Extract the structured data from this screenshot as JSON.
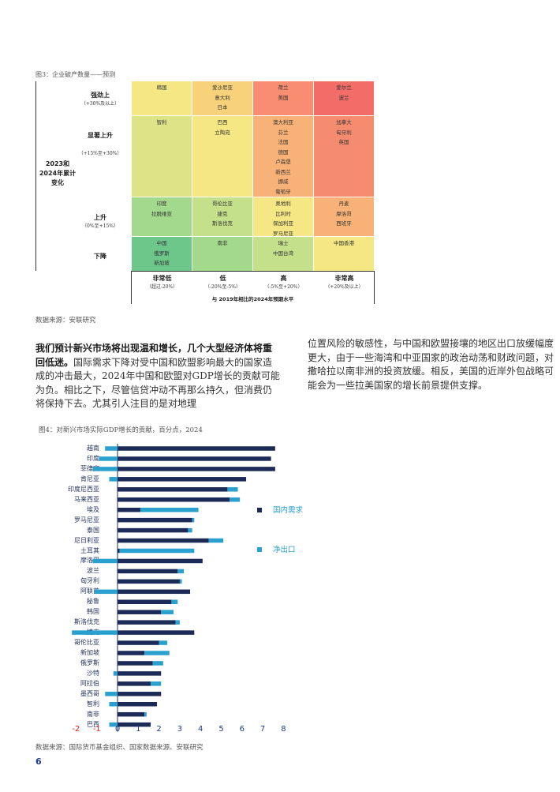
{
  "fig3": {
    "title": "图3：企业破产数量——预测",
    "left_label": [
      "2023和",
      "2024年累计",
      "变化"
    ],
    "rows": [
      {
        "label": "强劲上",
        "sub": "（+30%及以上）"
      },
      {
        "label": "显著上升",
        "sub": "（+15%至+30%）"
      },
      {
        "label": "上升",
        "sub": "（0%至+15%）"
      },
      {
        "label": "下降",
        "sub": ""
      }
    ],
    "cols": [
      {
        "label": "非常低",
        "sub": "（超过-20%）"
      },
      {
        "label": "低",
        "sub": "（-20%至-5%）"
      },
      {
        "label": "高",
        "sub": "（-5%至+20%）"
      },
      {
        "label": "非常高",
        "sub": "（+20%及以上）"
      }
    ],
    "axis_label": "与 2019年相比的2024年预期水平",
    "cells": [
      [
        "韩国",
        "爱沙尼亚\n意大利\n日本",
        "荷兰\n美国",
        "爱尔兰\n波兰"
      ],
      [
        "智利",
        "巴西\n立陶宛",
        "澳大利亚\n芬兰\n法国\n德国\n卢森堡\n新西兰\n挪威\n葡萄牙\n瑞典",
        "加拿大\n匈牙利\n英国"
      ],
      [
        "印度\n拉脱维亚",
        "哥伦比亚\n捷克\n斯洛伐克",
        "奥地利\n比利时\n保加利亚\n罗马尼亚",
        "丹麦\n摩洛哥\n西班牙"
      ],
      [
        "中国\n俄罗斯\n新加坡",
        "南非",
        "瑞士\n中国台湾",
        "中国香港"
      ]
    ],
    "colors": [
      [
        "#f5e784",
        "#f7d27a",
        "#f88d72",
        "#f26c68"
      ],
      [
        "#dde488",
        "#f5e784",
        "#f8b277",
        "#f58c70"
      ],
      [
        "#a3d98d",
        "#c5e08b",
        "#f5e784",
        "#f8b277"
      ],
      [
        "#6dc78b",
        "#a3d98d",
        "#c5e08b",
        "#f5e784"
      ]
    ],
    "source": "数据来源：安联研究"
  },
  "text": {
    "left_bold": "我们预计新兴市场将出现温和增长，几个大型经济体将重回低迷。",
    "left_rest": "国际需求下降对受中国和欧盟影响最大的国家造成的冲击最大，2024年中国和欧盟对GDP增长的贡献可能为负。相比之下，尽管信贷冲动不再那么持久，但消费仍将保持下去。尤其引人注目的是对地理",
    "right": "位置风险的敏感性，与中国和欧盟接壤的地区出口放缓幅度更大，由于一些海湾和中亚国家的政治动荡和财政问题，对撒哈拉以南非洲的投资放缓。相反，美国的近岸外包战略可能会为一些拉美国家的增长前景提供支撑。"
  },
  "chart_data": {
    "type": "bar",
    "title": "图4：对新兴市场实际GDP增长的贡献，百分点，2024",
    "categories": [
      "越南",
      "印度",
      "菲律宾",
      "肯尼亚",
      "印度尼西亚",
      "马来西亚",
      "埃及",
      "罗马尼亚",
      "泰国",
      "尼日利亚",
      "土耳其",
      "摩洛哥",
      "波兰",
      "匈牙利",
      "阿联酋",
      "秘鲁",
      "韩国",
      "斯洛伐克",
      "捷克",
      "哥伦比亚",
      "新加坡",
      "俄罗斯",
      "沙特",
      "阿拉伯",
      "墨西哥",
      "智利",
      "南非",
      "巴西"
    ],
    "series": [
      {
        "name": "国内需求",
        "color": "#1b2a57",
        "values": [
          7.6,
          7.4,
          7.6,
          6.2,
          5.3,
          5.4,
          1.1,
          3.6,
          3.4,
          4.4,
          0.1,
          4.1,
          2.9,
          3.0,
          3.5,
          2.6,
          2.1,
          2.8,
          3.7,
          2.0,
          1.3,
          1.7,
          2.1,
          1.6,
          2.1,
          1.9,
          1.3,
          1.6
        ]
      },
      {
        "name": "净出口",
        "color": "#2aa0cf",
        "values": [
          -0.6,
          -0.9,
          -1.2,
          -0.4,
          0.5,
          0.5,
          2.8,
          0.1,
          0.2,
          0.7,
          3.6,
          -1.2,
          0.3,
          0.1,
          -1.1,
          0.3,
          0.6,
          0.2,
          -2.2,
          0.4,
          1.2,
          0.5,
          -0.2,
          0.5,
          -0.6,
          -0.4,
          0.1,
          -0.4
        ]
      }
    ],
    "x_ticks": [
      -2,
      -1,
      0,
      1,
      2,
      3,
      4,
      5,
      6,
      7,
      8
    ],
    "xlim": [
      -2,
      8
    ],
    "legend": [
      "国内需求",
      "净出口"
    ],
    "source": "数据来源：国际货币基金组织、国家数据来源、安联研究"
  },
  "page_number": "6"
}
